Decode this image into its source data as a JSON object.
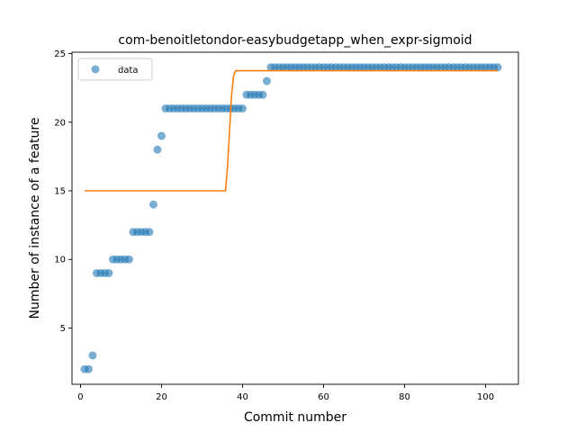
{
  "chart_data": {
    "type": "scatter",
    "title": "com-benoitletondor-easybudgetapp_when_expr-sigmoid",
    "xlabel": "Commit number",
    "ylabel": "Number of instance of a feature",
    "xlim": [
      -2.1,
      108.1
    ],
    "ylim": [
      0.9,
      25.1
    ],
    "xticks": [
      0,
      20,
      40,
      60,
      80,
      100
    ],
    "yticks": [
      5,
      10,
      15,
      20,
      25
    ],
    "grid": false,
    "legend": {
      "placement": "upper-left",
      "entries": [
        "data"
      ]
    },
    "colors": {
      "data": "#1f77b4",
      "fit": "#ff7f0e"
    },
    "series": [
      {
        "name": "data",
        "kind": "scatter",
        "x": [
          1,
          2,
          3,
          4,
          5,
          6,
          7,
          8,
          9,
          10,
          11,
          12,
          13,
          14,
          15,
          16,
          17,
          18,
          19,
          20,
          21,
          22,
          23,
          24,
          25,
          26,
          27,
          28,
          29,
          30,
          31,
          32,
          33,
          34,
          35,
          36,
          37,
          38,
          39,
          40,
          41,
          42,
          43,
          44,
          45,
          46,
          47,
          48,
          49,
          50,
          51,
          52,
          53,
          54,
          55,
          56,
          57,
          58,
          59,
          60,
          61,
          62,
          63,
          64,
          65,
          66,
          67,
          68,
          69,
          70,
          71,
          72,
          73,
          74,
          75,
          76,
          77,
          78,
          79,
          80,
          81,
          82,
          83,
          84,
          85,
          86,
          87,
          88,
          89,
          90,
          91,
          92,
          93,
          94,
          95,
          96,
          97,
          98,
          99,
          100,
          101,
          102,
          103
        ],
        "y": [
          2,
          2,
          3,
          9,
          9,
          9,
          9,
          10,
          10,
          10,
          10,
          10,
          12,
          12,
          12,
          12,
          12,
          14,
          18,
          19,
          21,
          21,
          21,
          21,
          21,
          21,
          21,
          21,
          21,
          21,
          21,
          21,
          21,
          21,
          21,
          21,
          21,
          21,
          21,
          21,
          22,
          22,
          22,
          22,
          22,
          23,
          24,
          24,
          24,
          24,
          24,
          24,
          24,
          24,
          24,
          24,
          24,
          24,
          24,
          24,
          24,
          24,
          24,
          24,
          24,
          24,
          24,
          24,
          24,
          24,
          24,
          24,
          24,
          24,
          24,
          24,
          24,
          24,
          24,
          24,
          24,
          24,
          24,
          24,
          24,
          24,
          24,
          24,
          24,
          24,
          24,
          24,
          24,
          24,
          24,
          24,
          24,
          24,
          24,
          24,
          24,
          24,
          24
        ]
      },
      {
        "kind": "line",
        "x": [
          1,
          35.8,
          36.3,
          36.8,
          37.3,
          37.8,
          38.3,
          103
        ],
        "y": [
          15.0,
          15.0,
          16.8,
          19.4,
          22.0,
          23.4,
          23.75,
          23.75
        ]
      }
    ]
  }
}
